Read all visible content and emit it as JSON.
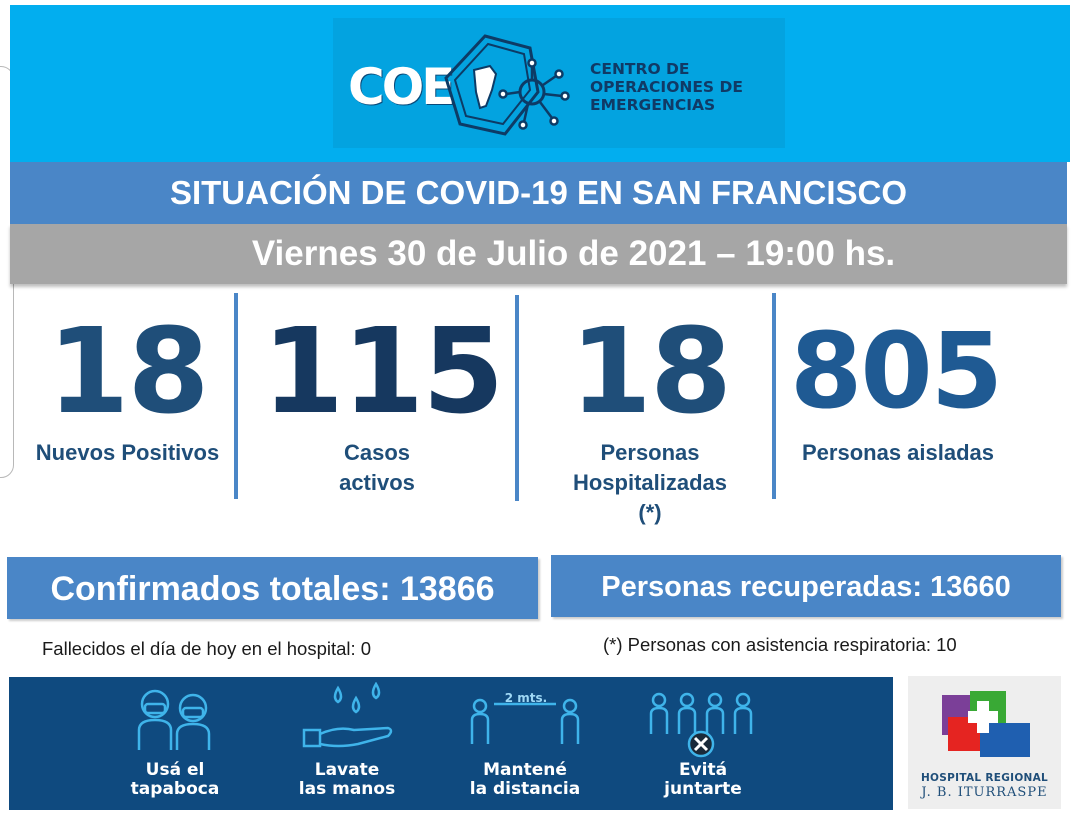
{
  "header": {
    "logo_text": "COE",
    "org_lines": [
      "CENTRO DE",
      "OPERACIONES DE",
      "EMERGENCIAS"
    ],
    "title": "SITUACIÓN DE COVID-19 EN SAN FRANCISCO",
    "date": "Viernes 30 de Julio de 2021 – 19:00 hs."
  },
  "stats": [
    {
      "value": "18",
      "label_lines": [
        "Nuevos Positivos"
      ]
    },
    {
      "value": "115",
      "label_lines": [
        "Casos",
        "activos"
      ]
    },
    {
      "value": "18",
      "label_lines": [
        "Personas",
        "Hospitalizadas",
        "(*)"
      ]
    },
    {
      "value": "805",
      "label_lines": [
        "Personas aisladas"
      ]
    }
  ],
  "totals": {
    "confirmed": "Confirmados totales: 13866",
    "recovered": "Personas recuperadas: 13660"
  },
  "notes": {
    "deaths": "Fallecidos el día de hoy en el hospital: 0",
    "respiratory": "(*) Personas con asistencia respiratoria: 10"
  },
  "rules": [
    {
      "icon": "mask-icon",
      "lines": [
        "Usá el",
        "tapaboca"
      ]
    },
    {
      "icon": "handwash-icon",
      "lines": [
        "Lavate",
        "las manos"
      ]
    },
    {
      "icon": "distance-icon",
      "lines": [
        "Mantené",
        "la distancia"
      ],
      "distance_label": "2 mts."
    },
    {
      "icon": "no-gathering-icon",
      "lines": [
        "Evitá",
        "juntarte"
      ]
    }
  ],
  "hospital": {
    "line1": "HOSPITAL REGIONAL",
    "line2": "J. B. ITURRASPE"
  },
  "colors": {
    "header_blue": "#02aeef",
    "title_blue": "#4a86c7",
    "date_gray": "#a6a6a6",
    "stat_navy": "#1f4e79",
    "banner_navy": "#0f4a7f"
  }
}
